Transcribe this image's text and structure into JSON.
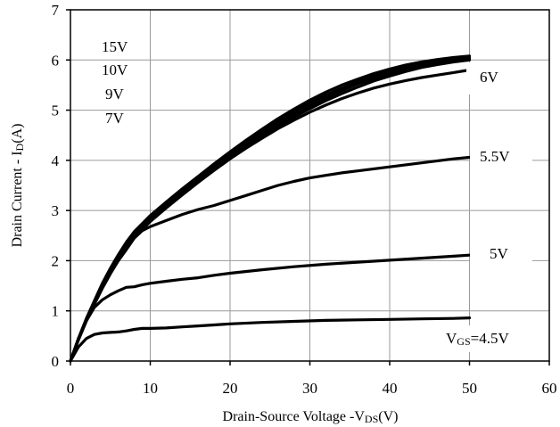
{
  "chart_data": {
    "type": "line",
    "title": "",
    "xlabel": {
      "main": "Drain-Source Voltage -V",
      "sub": "DS",
      "tail": "(V)"
    },
    "ylabel": {
      "main": "Drain Current - I",
      "sub": "D",
      "tail": "(A)"
    },
    "xlim": [
      0,
      60
    ],
    "ylim": [
      0,
      7
    ],
    "xticks": [
      0,
      10,
      20,
      30,
      40,
      50,
      60
    ],
    "yticks": [
      0,
      1,
      2,
      3,
      4,
      5,
      6,
      7
    ],
    "grid": true,
    "legend": "none",
    "line_color": "#000000",
    "series": [
      {
        "name": "15V",
        "x": [
          0,
          1,
          2,
          3,
          4,
          5,
          6,
          7,
          8,
          10,
          12,
          14,
          16,
          18,
          20,
          22,
          24,
          26,
          28,
          30,
          32,
          34,
          36,
          38,
          40,
          42,
          44,
          46,
          48,
          50
        ],
        "y": [
          0,
          0.45,
          0.85,
          1.2,
          1.55,
          1.85,
          2.12,
          2.37,
          2.58,
          2.9,
          3.17,
          3.43,
          3.68,
          3.93,
          4.17,
          4.4,
          4.62,
          4.83,
          5.02,
          5.2,
          5.36,
          5.5,
          5.62,
          5.73,
          5.82,
          5.9,
          5.96,
          6.01,
          6.05,
          6.08
        ]
      },
      {
        "name": "10V",
        "x": [
          0,
          1,
          2,
          3,
          4,
          5,
          6,
          7,
          8,
          10,
          12,
          14,
          16,
          18,
          20,
          22,
          24,
          26,
          28,
          30,
          32,
          34,
          36,
          38,
          40,
          42,
          44,
          46,
          48,
          50
        ],
        "y": [
          0,
          0.45,
          0.84,
          1.19,
          1.53,
          1.83,
          2.1,
          2.34,
          2.55,
          2.87,
          3.14,
          3.4,
          3.65,
          3.9,
          4.13,
          4.36,
          4.58,
          4.78,
          4.97,
          5.14,
          5.3,
          5.44,
          5.57,
          5.68,
          5.77,
          5.85,
          5.92,
          5.97,
          6.01,
          6.04
        ]
      },
      {
        "name": "9V",
        "x": [
          0,
          1,
          2,
          3,
          4,
          5,
          6,
          7,
          8,
          10,
          12,
          14,
          16,
          18,
          20,
          22,
          24,
          26,
          28,
          30,
          32,
          34,
          36,
          38,
          40,
          42,
          44,
          46,
          48,
          50
        ],
        "y": [
          0,
          0.44,
          0.83,
          1.18,
          1.51,
          1.81,
          2.07,
          2.31,
          2.52,
          2.84,
          3.11,
          3.37,
          3.62,
          3.86,
          4.09,
          4.31,
          4.52,
          4.72,
          4.91,
          5.08,
          5.24,
          5.39,
          5.52,
          5.63,
          5.73,
          5.82,
          5.89,
          5.95,
          5.99,
          6.02
        ]
      },
      {
        "name": "7V",
        "x": [
          0,
          1,
          2,
          3,
          4,
          5,
          6,
          7,
          8,
          10,
          12,
          14,
          16,
          18,
          20,
          22,
          24,
          26,
          28,
          30,
          32,
          34,
          36,
          38,
          40,
          42,
          44,
          46,
          48,
          50
        ],
        "y": [
          0,
          0.44,
          0.82,
          1.17,
          1.49,
          1.79,
          2.05,
          2.28,
          2.49,
          2.81,
          3.08,
          3.34,
          3.59,
          3.83,
          4.06,
          4.28,
          4.49,
          4.68,
          4.86,
          5.03,
          5.19,
          5.33,
          5.46,
          5.58,
          5.68,
          5.77,
          5.85,
          5.91,
          5.96,
          6.0
        ]
      },
      {
        "name": "6V",
        "x": [
          0,
          1,
          2,
          3,
          4,
          5,
          6,
          7,
          8,
          10,
          12,
          14,
          16,
          18,
          20,
          22,
          24,
          26,
          28,
          30,
          32,
          34,
          36,
          38,
          40,
          42,
          44,
          46,
          48,
          50
        ],
        "y": [
          0,
          0.43,
          0.81,
          1.15,
          1.47,
          1.76,
          2.02,
          2.25,
          2.46,
          2.78,
          3.05,
          3.31,
          3.56,
          3.8,
          4.03,
          4.24,
          4.44,
          4.63,
          4.8,
          4.96,
          5.1,
          5.23,
          5.34,
          5.44,
          5.52,
          5.59,
          5.65,
          5.7,
          5.75,
          5.8
        ]
      },
      {
        "name": "5.5V",
        "x": [
          0,
          1,
          2,
          3,
          4,
          5,
          6,
          7,
          8,
          9,
          10,
          12,
          14,
          16,
          18,
          20,
          22,
          24,
          26,
          28,
          30,
          32,
          34,
          36,
          38,
          40,
          42,
          44,
          46,
          48,
          50
        ],
        "y": [
          0,
          0.42,
          0.8,
          1.13,
          1.45,
          1.74,
          2.0,
          2.22,
          2.45,
          2.6,
          2.68,
          2.8,
          2.92,
          3.02,
          3.1,
          3.2,
          3.3,
          3.4,
          3.5,
          3.58,
          3.65,
          3.7,
          3.75,
          3.79,
          3.83,
          3.87,
          3.91,
          3.95,
          3.99,
          4.03,
          4.06
        ]
      },
      {
        "name": "5V",
        "x": [
          0,
          1,
          2,
          3,
          4,
          5,
          6,
          7,
          8,
          9,
          10,
          12,
          14,
          16,
          18,
          20,
          24,
          28,
          32,
          36,
          40,
          44,
          48,
          50
        ],
        "y": [
          0,
          0.45,
          0.8,
          1.07,
          1.22,
          1.32,
          1.4,
          1.47,
          1.48,
          1.52,
          1.55,
          1.59,
          1.63,
          1.66,
          1.71,
          1.75,
          1.82,
          1.88,
          1.93,
          1.97,
          2.01,
          2.05,
          2.09,
          2.11
        ]
      },
      {
        "name": "4.5V",
        "x": [
          0,
          1,
          2,
          3,
          4,
          5,
          6,
          7,
          8,
          9,
          10,
          12,
          14,
          16,
          18,
          20,
          24,
          28,
          32,
          36,
          40,
          44,
          48,
          50
        ],
        "y": [
          0,
          0.28,
          0.45,
          0.53,
          0.56,
          0.57,
          0.58,
          0.6,
          0.63,
          0.65,
          0.65,
          0.66,
          0.68,
          0.7,
          0.72,
          0.74,
          0.77,
          0.79,
          0.81,
          0.82,
          0.83,
          0.84,
          0.85,
          0.86
        ]
      }
    ],
    "annotations": [
      {
        "text": "15V"
      },
      {
        "text": "10V"
      },
      {
        "text": "9V"
      },
      {
        "text": "7V"
      },
      {
        "text": "6V"
      },
      {
        "text": "5.5V"
      },
      {
        "text": "5V"
      },
      {
        "text": "V",
        "sub": "GS",
        "tail": "=4.5V"
      }
    ]
  }
}
